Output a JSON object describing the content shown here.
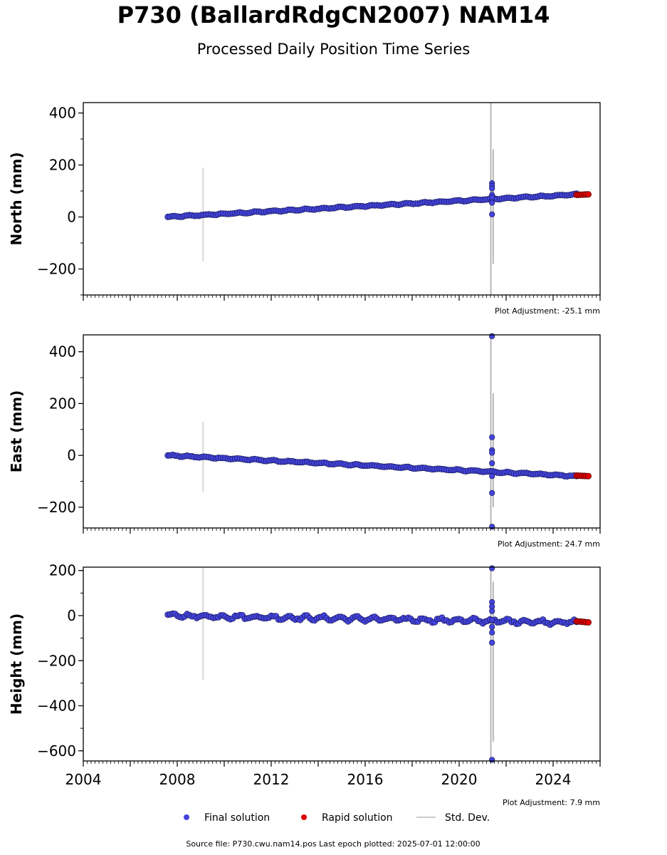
{
  "header": {
    "title": "P730 (BallardRdgCN2007) NAM14",
    "subtitle": "Processed Daily Position Time Series"
  },
  "footer": {
    "source": "Source file: P730.cwu.nam14.pos  Last epoch plotted: 2025-07-01 12:00:00"
  },
  "legend": [
    {
      "label": "Final solution",
      "kind": "dot",
      "color": "#4444dd"
    },
    {
      "label": "Rapid solution",
      "kind": "dot",
      "color": "#dd0000"
    },
    {
      "label": "Std. Dev.",
      "kind": "line",
      "color": "#cccccc"
    }
  ],
  "chart_data": [
    {
      "type": "scatter",
      "ylabel": "North (mm)",
      "adjustment": "Plot Adjustment: -25.1 mm",
      "xlim": [
        2004,
        2026
      ],
      "ylim": [
        -300,
        440
      ],
      "yticks": [
        400,
        200,
        0,
        -200
      ],
      "ytick_labels": [
        "400",
        "200",
        "0",
        "−200"
      ],
      "final": {
        "start": [
          2007.6,
          0
        ],
        "end": [
          2025.0,
          87
        ],
        "wobble": 2
      },
      "rapid": {
        "start": [
          2025.0,
          85
        ],
        "end": [
          2025.5,
          87
        ]
      },
      "gap_jump": {
        "x": 2021.4,
        "outliers": [
          130,
          120,
          110,
          85,
          75,
          55,
          10
        ]
      },
      "stddev": [
        {
          "x": 2009.1,
          "y1": -170,
          "y2": 190
        },
        {
          "x": 2021.35,
          "y1": -300,
          "y2": 440
        },
        {
          "x": 2021.45,
          "y1": -180,
          "y2": 260
        }
      ]
    },
    {
      "type": "scatter",
      "ylabel": "East (mm)",
      "adjustment": "Plot Adjustment: 24.7 mm",
      "xlim": [
        2004,
        2026
      ],
      "ylim": [
        -280,
        465
      ],
      "yticks": [
        400,
        200,
        0,
        -200
      ],
      "ytick_labels": [
        "400",
        "200",
        "0",
        "−200"
      ],
      "final": {
        "start": [
          2007.6,
          0
        ],
        "end": [
          2025.0,
          -80
        ],
        "wobble": 2
      },
      "rapid": {
        "start": [
          2025.0,
          -78
        ],
        "end": [
          2025.5,
          -80
        ]
      },
      "gap_jump": {
        "x": 2021.4,
        "outliers": [
          460,
          70,
          20,
          10,
          -30,
          -80,
          -145,
          -275
        ]
      },
      "stddev": [
        {
          "x": 2009.1,
          "y1": -140,
          "y2": 130
        },
        {
          "x": 2021.35,
          "y1": -280,
          "y2": 465
        },
        {
          "x": 2021.45,
          "y1": -200,
          "y2": 240
        }
      ]
    },
    {
      "type": "scatter",
      "ylabel": "Height (mm)",
      "adjustment": "Plot Adjustment: 7.9 mm",
      "xlim": [
        2004,
        2026
      ],
      "ylim": [
        -645,
        215
      ],
      "yticks": [
        200,
        0,
        -200,
        -400,
        -600
      ],
      "ytick_labels": [
        "200",
        "0",
        "−200",
        "−400",
        "−600"
      ],
      "xticks": [
        2004,
        2008,
        2012,
        2016,
        2020,
        2024
      ],
      "xtick_labels": [
        "2004",
        "2008",
        "2012",
        "2016",
        "2020",
        "2024"
      ],
      "final": {
        "start": [
          2007.6,
          0
        ],
        "end": [
          2025.0,
          -30
        ],
        "wobble": 8
      },
      "rapid": {
        "start": [
          2025.0,
          -25
        ],
        "end": [
          2025.5,
          -30
        ]
      },
      "gap_jump": {
        "x": 2021.4,
        "outliers": [
          210,
          60,
          40,
          20,
          -20,
          -50,
          -75,
          -120,
          -640
        ]
      },
      "stddev": [
        {
          "x": 2009.1,
          "y1": -285,
          "y2": 215
        },
        {
          "x": 2021.35,
          "y1": -645,
          "y2": 215
        },
        {
          "x": 2021.45,
          "y1": -560,
          "y2": 150
        }
      ]
    }
  ]
}
